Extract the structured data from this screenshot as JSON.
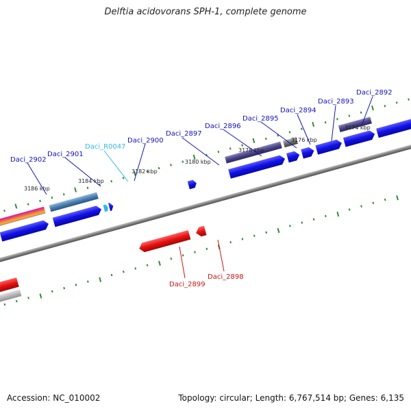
{
  "title": "Delftia acidovorans SPH-1, complete genome",
  "accession": "Accession: NC_010002",
  "summary": "Topology: circular; Length: 6,767,514 bp; Genes: 6,135",
  "colors": {
    "forward_label": "#1010c0",
    "reverse_label": "#d01010",
    "rna_label": "#30b8e8",
    "backbone": "#808080",
    "tick": "#2e8b2e",
    "forward_gene": "#1010e8",
    "reverse_gene": "#e81010",
    "cog_purple": "#4a4585",
    "cog_steel": "#4a7fb0",
    "cog_gray": "#707070"
  },
  "kbp_labels": [
    "3186 kbp",
    "3184 kbp",
    "3182 kbp",
    "3180 kbp",
    "3178 kbp",
    "3176 kbp",
    "3174 kbp"
  ],
  "forward_genes": [
    "Daci_2902",
    "Daci_2901",
    "Daci_R0047",
    "Daci_2900",
    "Daci_2897",
    "Daci_2896",
    "Daci_2895",
    "Daci_2894",
    "Daci_2893",
    "Daci_2892"
  ],
  "reverse_genes": [
    "Daci_2899",
    "Daci_2898"
  ]
}
